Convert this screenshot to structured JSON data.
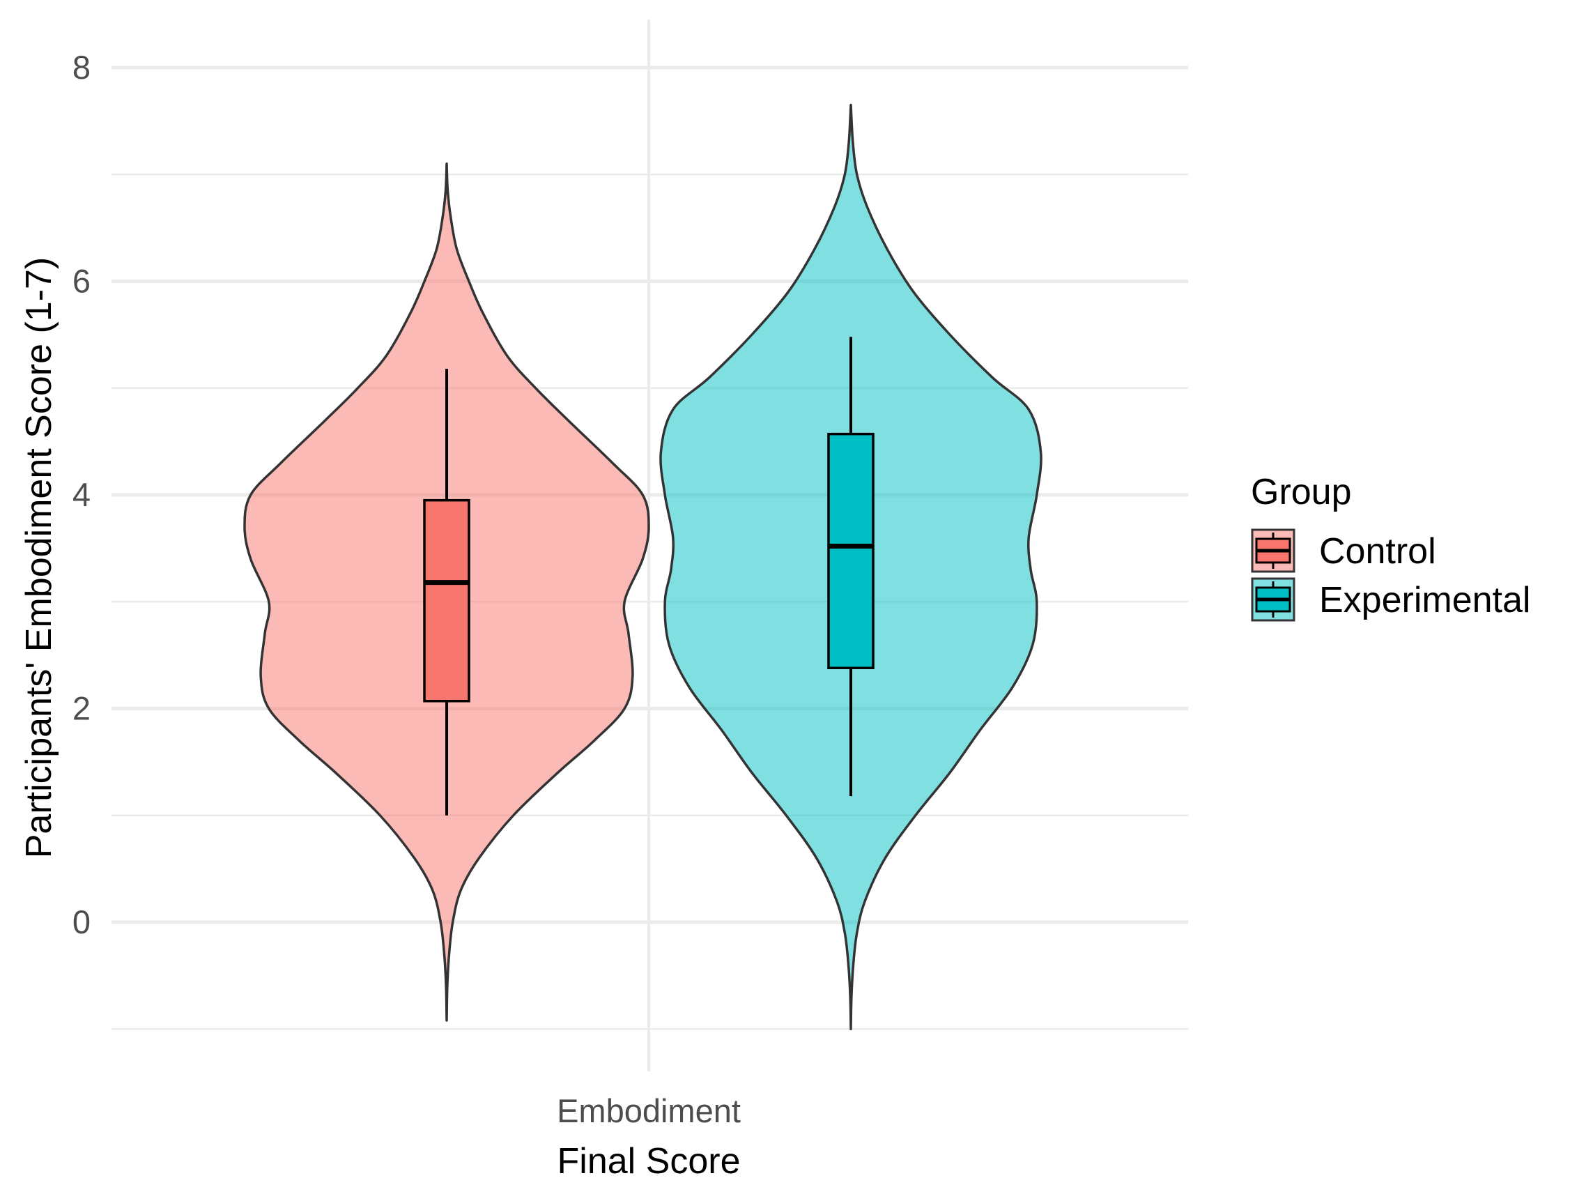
{
  "chart_data": {
    "type": "violin",
    "title": "",
    "xlabel": "Final Score",
    "ylabel": "Participants' Embodiment Score (1-7)",
    "categories": [
      "Embodiment"
    ],
    "ylim": [
      -1.2,
      8.3
    ],
    "yticks": [
      0,
      2,
      4,
      6,
      8
    ],
    "grid": true,
    "legend": {
      "title": "Group",
      "position": "right"
    },
    "series": [
      {
        "name": "Control",
        "color": "#F8766D",
        "violin_fill_opacity": 0.5,
        "violin_range": [
          -0.92,
          7.1
        ],
        "density_profile": [
          [
            -0.92,
            0.0
          ],
          [
            -0.6,
            0.003
          ],
          [
            -0.3,
            0.012
          ],
          [
            0.0,
            0.03
          ],
          [
            0.3,
            0.07
          ],
          [
            0.6,
            0.16
          ],
          [
            1.0,
            0.33
          ],
          [
            1.4,
            0.55
          ],
          [
            1.7,
            0.73
          ],
          [
            2.0,
            0.88
          ],
          [
            2.3,
            0.92
          ],
          [
            2.7,
            0.9
          ],
          [
            3.0,
            0.88
          ],
          [
            3.4,
            0.97
          ],
          [
            3.7,
            1.0
          ],
          [
            4.0,
            0.97
          ],
          [
            4.3,
            0.82
          ],
          [
            4.7,
            0.6
          ],
          [
            5.0,
            0.44
          ],
          [
            5.3,
            0.3
          ],
          [
            5.7,
            0.18
          ],
          [
            6.0,
            0.11
          ],
          [
            6.3,
            0.05
          ],
          [
            6.6,
            0.02
          ],
          [
            6.85,
            0.005
          ],
          [
            7.1,
            0.0
          ]
        ],
        "box": {
          "lower_whisker": 1.0,
          "q1": 2.07,
          "median": 3.18,
          "q3": 3.95,
          "upper_whisker": 5.18
        }
      },
      {
        "name": "Experimental",
        "color": "#00BFC4",
        "violin_fill_opacity": 0.5,
        "violin_range": [
          -1.0,
          7.65
        ],
        "density_profile": [
          [
            -1.0,
            0.0
          ],
          [
            -0.7,
            0.003
          ],
          [
            -0.4,
            0.012
          ],
          [
            -0.1,
            0.03
          ],
          [
            0.2,
            0.07
          ],
          [
            0.6,
            0.17
          ],
          [
            1.0,
            0.32
          ],
          [
            1.4,
            0.49
          ],
          [
            1.8,
            0.64
          ],
          [
            2.2,
            0.8
          ],
          [
            2.6,
            0.9
          ],
          [
            3.0,
            0.92
          ],
          [
            3.3,
            0.89
          ],
          [
            3.6,
            0.88
          ],
          [
            4.0,
            0.92
          ],
          [
            4.4,
            0.94
          ],
          [
            4.8,
            0.88
          ],
          [
            5.1,
            0.7
          ],
          [
            5.5,
            0.49
          ],
          [
            5.9,
            0.31
          ],
          [
            6.3,
            0.18
          ],
          [
            6.7,
            0.08
          ],
          [
            7.0,
            0.03
          ],
          [
            7.3,
            0.01
          ],
          [
            7.65,
            0.0
          ]
        ],
        "box": {
          "lower_whisker": 1.18,
          "q1": 2.38,
          "median": 3.52,
          "q3": 4.57,
          "upper_whisker": 5.48
        }
      }
    ]
  }
}
